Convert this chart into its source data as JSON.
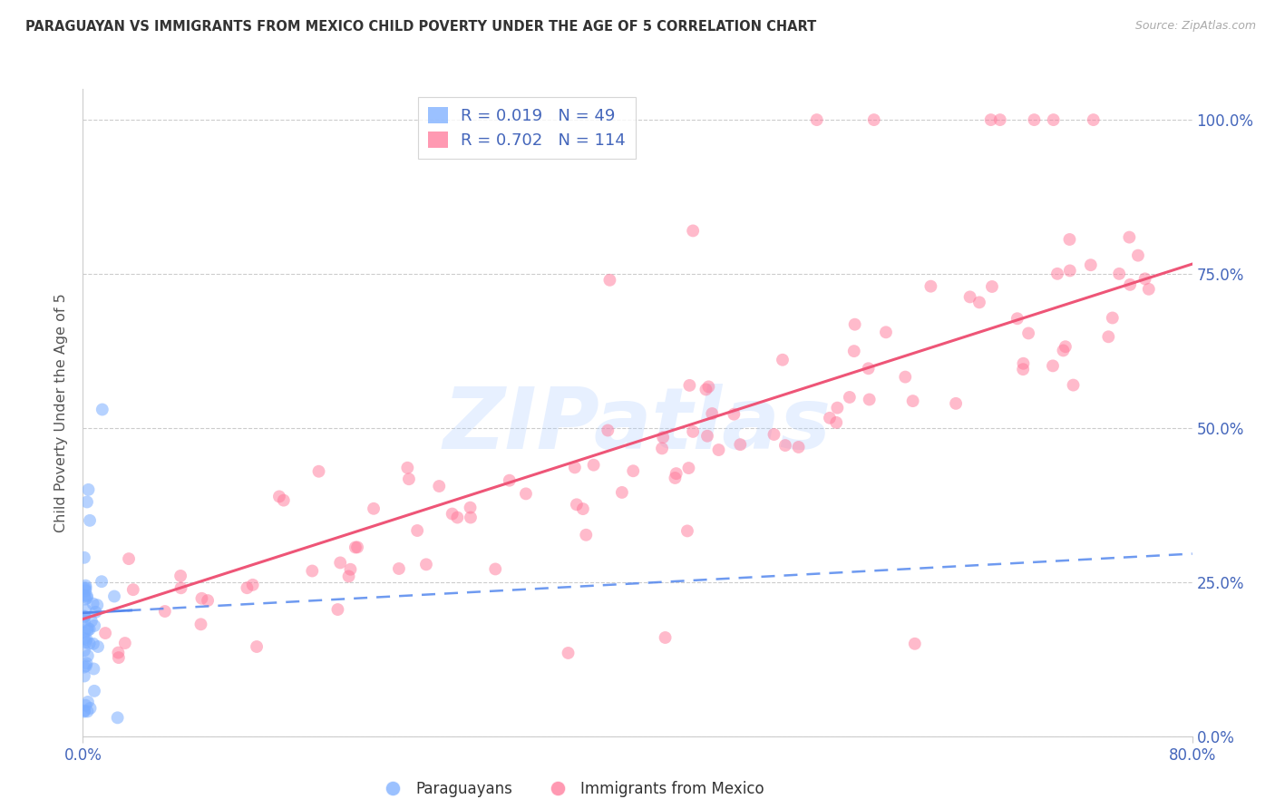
{
  "title": "PARAGUAYAN VS IMMIGRANTS FROM MEXICO CHILD POVERTY UNDER THE AGE OF 5 CORRELATION CHART",
  "source": "Source: ZipAtlas.com",
  "ylabel": "Child Poverty Under the Age of 5",
  "xmin": 0.0,
  "xmax": 0.8,
  "ymin": 0.0,
  "ymax": 1.05,
  "yticks": [
    0.0,
    0.25,
    0.5,
    0.75,
    1.0
  ],
  "ytick_labels": [
    "0.0%",
    "25.0%",
    "50.0%",
    "75.0%",
    "100.0%"
  ],
  "xtick_left": "0.0%",
  "xtick_right": "80.0%",
  "legend_blue_R": "0.019",
  "legend_blue_N": "49",
  "legend_pink_R": "0.702",
  "legend_pink_N": "114",
  "legend_blue_label": "Paraguayans",
  "legend_pink_label": "Immigrants from Mexico",
  "blue_color": "#7aadff",
  "pink_color": "#ff7799",
  "blue_line_color": "#5588ee",
  "pink_line_color": "#ee5577",
  "grid_color": "#cccccc",
  "tick_label_color": "#4466bb",
  "title_color": "#333333",
  "source_color": "#aaaaaa",
  "ylabel_color": "#555555",
  "watermark_text": "ZIPatlas",
  "watermark_color": "#aaccff",
  "legend_text_R_color": "#666688",
  "legend_text_N_color": "#4466bb",
  "seed": 77
}
